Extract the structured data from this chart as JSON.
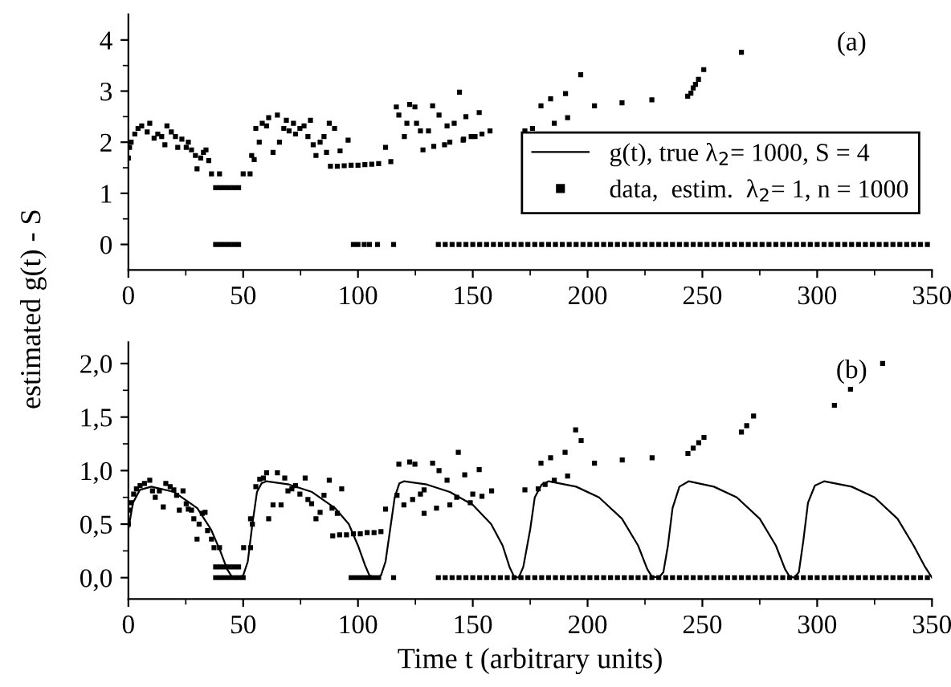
{
  "chart_data": [
    {
      "type": "scatter",
      "ylabel": "estimated g(t) - S",
      "annotations": [
        "(a)"
      ],
      "legend": "center right",
      "marker": "square",
      "grid": false,
      "xlim": [
        0,
        350
      ],
      "xticks": [
        0,
        {
          "value": 25,
          "label": null
        },
        50,
        {
          "value": 75,
          "label": null
        },
        100,
        {
          "value": 125,
          "label": null
        },
        150,
        {
          "value": 175,
          "label": null
        },
        200,
        {
          "value": 225,
          "label": null
        },
        250,
        {
          "value": 275,
          "label": null
        },
        300,
        {
          "value": 325,
          "label": null
        },
        350
      ],
      "ylim": [
        -0.5,
        4.5
      ],
      "yticks": [
        0,
        {
          "value": 0.5,
          "label": null
        },
        1,
        {
          "value": 1.5,
          "label": null
        },
        2,
        {
          "value": 2.5,
          "label": null
        },
        3,
        {
          "value": 3.5,
          "label": null
        },
        4
      ],
      "series": [
        {
          "name": "g(t), true λ$_{2}$= 1000, S = 4",
          "type": "line",
          "marker": "none",
          "color": "#000000"
        },
        {
          "name": "data,  estim.  λ$_{2}$= 1, n = 1000",
          "color": "#000000",
          "x": [
            0,
            0.5,
            1.2,
            2.8,
            4.2,
            5.8,
            8.2,
            9.3,
            11.2,
            12.8,
            14.5,
            15.9,
            16.8,
            18.7,
            20.5,
            21.5,
            23.3,
            25.2,
            26.1,
            27.5,
            29.2,
            29.9,
            31.5,
            32.7,
            33.8,
            35,
            36.2,
            38,
            39.7,
            40,
            42,
            44,
            46,
            48,
            50,
            53,
            53.7,
            54.8,
            55.5,
            57,
            58.3,
            60.2,
            61.1,
            63,
            64.9,
            65.8,
            67.7,
            68.8,
            70,
            71.9,
            72.8,
            74.7,
            76.5,
            78.2,
            79.3,
            80.5,
            81.7,
            83.5,
            85.2,
            86.3,
            87.5,
            88,
            89.8,
            91,
            92.2,
            94,
            95.7,
            97,
            100,
            103,
            106,
            109,
            112,
            114.3,
            116.7,
            117.8,
            120.2,
            121.3,
            122.5,
            124.8,
            125.5,
            127.2,
            128.3,
            130.7,
            132.5,
            133,
            135.3,
            137.7,
            138.8,
            140,
            141.9,
            144.2,
            145.8,
            146,
            147,
            149.3,
            151,
            152.8,
            154,
            157.5,
            172.7,
            176,
            179.7,
            183.9,
            185.5,
            190.4,
            191.3,
            197,
            203,
            215,
            228,
            243.6,
            245,
            246,
            247,
            248.3,
            250.6,
            267
          ],
          "values": [
            1.69,
            1.9,
            2.0,
            2.16,
            2.27,
            2.32,
            2.2,
            2.37,
            2.08,
            2.16,
            2.11,
            1.95,
            2.32,
            2.2,
            2.11,
            1.9,
            2.06,
            1.9,
            2.0,
            1.85,
            1.74,
            1.48,
            1.69,
            1.8,
            1.85,
            1.64,
            1.38,
            1.11,
            1.38,
            1.11,
            1.11,
            1.11,
            1.11,
            1.11,
            1.38,
            1.38,
            1.74,
            1.66,
            2.27,
            2.0,
            2.37,
            2.32,
            2.48,
            1.8,
            2.53,
            2.0,
            2.27,
            2.43,
            2.22,
            2.37,
            2.16,
            2.27,
            2.32,
            2.11,
            2.43,
            1.95,
            1.74,
            2.0,
            2.11,
            1.8,
            2.37,
            1.53,
            2.27,
            1.53,
            1.83,
            1.54,
            2.04,
            1.55,
            1.55,
            1.56,
            1.57,
            1.58,
            1.9,
            1.62,
            2.69,
            2.53,
            2.11,
            2.37,
            2.74,
            2.69,
            2.37,
            2.22,
            1.85,
            2.22,
            2.71,
            1.92,
            2.53,
            1.95,
            2.32,
            2.0,
            2.37,
            2.98,
            2.04,
            2.06,
            2.5,
            2.11,
            2.11,
            2.58,
            2.16,
            2.22,
            2.22,
            2.27,
            2.71,
            2.85,
            2.37,
            2.95,
            2.48,
            3.32,
            2.71,
            2.77,
            2.83,
            2.9,
            2.96,
            3.06,
            3.13,
            3.23,
            3.42,
            3.76
          ]
        },
        {
          "color": "#000000",
          "x": [
            38,
            40,
            42,
            44,
            46,
            48,
            98,
            100,
            102.7,
            105,
            108.5,
            115.5,
            135,
            138,
            141,
            144,
            147,
            150,
            153,
            156,
            159,
            162,
            165,
            168,
            171,
            174,
            177,
            180,
            183,
            186,
            189,
            192,
            195,
            198,
            201,
            204,
            207,
            210,
            213,
            216,
            219,
            222,
            225,
            228,
            231,
            234,
            237,
            240,
            243,
            246,
            249,
            252,
            255,
            258,
            261,
            264,
            267,
            270,
            273,
            276,
            279,
            282,
            285,
            288,
            291,
            294,
            297,
            300,
            303,
            306,
            309,
            312,
            315,
            318,
            321,
            324,
            327,
            330,
            333,
            336,
            339,
            342,
            345,
            348
          ],
          "values": [
            0,
            0,
            0,
            0,
            0,
            0,
            0,
            0,
            0,
            0,
            0,
            0,
            0,
            0,
            0,
            0,
            0,
            0,
            0,
            0,
            0,
            0,
            0,
            0,
            0,
            0,
            0,
            0,
            0,
            0,
            0,
            0,
            0,
            0,
            0,
            0,
            0,
            0,
            0,
            0,
            0,
            0,
            0,
            0,
            0,
            0,
            0,
            0,
            0,
            0,
            0,
            0,
            0,
            0,
            0,
            0,
            0,
            0,
            0,
            0,
            0,
            0,
            0,
            0,
            0,
            0,
            0,
            0,
            0,
            0,
            0,
            0,
            0,
            0,
            0,
            0,
            0,
            0,
            0,
            0,
            0,
            0,
            0,
            0
          ]
        }
      ]
    },
    {
      "type": "scatter",
      "xlabel": "Time t (arbitrary units)",
      "annotations": [
        "(b)"
      ],
      "marker": "square",
      "grid": false,
      "xlim": [
        0,
        350
      ],
      "xticks": [
        0,
        {
          "value": 25,
          "label": null
        },
        50,
        {
          "value": 75,
          "label": null
        },
        100,
        {
          "value": 125,
          "label": null
        },
        150,
        {
          "value": 175,
          "label": null
        },
        200,
        {
          "value": 225,
          "label": null
        },
        250,
        {
          "value": 275,
          "label": null
        },
        300,
        {
          "value": 325,
          "label": null
        },
        350
      ],
      "ylim": [
        -0.2,
        2.2
      ],
      "yticks": [
        {
          "value": 0,
          "label": "0,0"
        },
        {
          "value": 0.25,
          "label": null
        },
        {
          "value": 0.5,
          "label": "0,5"
        },
        {
          "value": 0.75,
          "label": null
        },
        {
          "value": 1,
          "label": "1,0"
        },
        {
          "value": 1.25,
          "label": null
        },
        {
          "value": 1.5,
          "label": "1,5"
        },
        {
          "value": 1.75,
          "label": null
        },
        {
          "value": 2,
          "label": "2,0"
        }
      ],
      "series": [
        {
          "type": "line",
          "marker": "none",
          "color": "#000000",
          "x": [
            0,
            2,
            5,
            10,
            20,
            30,
            36,
            40,
            43,
            45,
            48,
            50,
            52,
            54,
            56,
            58,
            60,
            70,
            80,
            90,
            96,
            100,
            103,
            105,
            108,
            110,
            112,
            114,
            116,
            118,
            120,
            130,
            140,
            150,
            158,
            163,
            166,
            168,
            170,
            172,
            175,
            177,
            180,
            183,
            195,
            205,
            215,
            222,
            226,
            228,
            231,
            233,
            235,
            237,
            240,
            244,
            255,
            265,
            275,
            282,
            286,
            288,
            290,
            292,
            294,
            296,
            299,
            303,
            315,
            325,
            335,
            342,
            347,
            350
          ],
          "values": [
            0.45,
            0.7,
            0.82,
            0.85,
            0.8,
            0.65,
            0.45,
            0.25,
            0.08,
            0.01,
            0,
            0.02,
            0.15,
            0.5,
            0.8,
            0.88,
            0.9,
            0.87,
            0.8,
            0.65,
            0.5,
            0.3,
            0.12,
            0.02,
            0,
            0.02,
            0.15,
            0.45,
            0.75,
            0.88,
            0.9,
            0.87,
            0.8,
            0.68,
            0.5,
            0.3,
            0.1,
            0.01,
            0,
            0.1,
            0.45,
            0.75,
            0.87,
            0.9,
            0.85,
            0.75,
            0.55,
            0.3,
            0.08,
            0.01,
            0,
            0.05,
            0.3,
            0.65,
            0.85,
            0.9,
            0.85,
            0.75,
            0.55,
            0.3,
            0.08,
            0.01,
            0,
            0.05,
            0.35,
            0.7,
            0.86,
            0.9,
            0.85,
            0.75,
            0.55,
            0.3,
            0.1,
            0
          ]
        },
        {
          "color": "#000000",
          "x": [
            0,
            0.3,
            1.2,
            2.3,
            3.5,
            5.1,
            7,
            9.3,
            10.5,
            11.7,
            13.5,
            15.2,
            16.3,
            18.2,
            19.8,
            21,
            22.2,
            23.8,
            25.2,
            26.1,
            27.5,
            28.5,
            29.9,
            30.8,
            32.2,
            33.4,
            34.5,
            36.2,
            37.3,
            38,
            39.7,
            40,
            42,
            44,
            46,
            48,
            50.2,
            53.2,
            53.2,
            54,
            55.5,
            57.2,
            58.8,
            60.2,
            61.1,
            63,
            64.9,
            66.5,
            68.1,
            69.5,
            71.2,
            72.8,
            74.7,
            77,
            78.2,
            79.8,
            81.7,
            83.5,
            85.2,
            87.5,
            88.7,
            89,
            91,
            92,
            92.9,
            95,
            98,
            101,
            104,
            107,
            110,
            112,
            117,
            117.8,
            120,
            122.5,
            123.8,
            124.8,
            127.2,
            128.8,
            128.8,
            132.5,
            134.2,
            135.3,
            138.8,
            140,
            143,
            143.7,
            146.5,
            148.9,
            150,
            152.8,
            154,
            158.2,
            172.7,
            178.5,
            179.7,
            181.5,
            183.9,
            185.5,
            190.2,
            191.3,
            194.8,
            197.2,
            203,
            215.1,
            228.1,
            243.7,
            246,
            248.4,
            250.7,
            267,
            269.3,
            272.3,
            307.5,
            314.5,
            328.5
          ],
          "values": [
            0.5,
            0.63,
            0.7,
            0.78,
            0.83,
            0.86,
            0.88,
            0.91,
            0.81,
            0.75,
            0.81,
            0.66,
            0.88,
            0.85,
            0.82,
            0.77,
            0.63,
            0.81,
            0.69,
            0.64,
            0.63,
            0.55,
            0.36,
            0.5,
            0.6,
            0.61,
            0.44,
            0.36,
            0.28,
            0.1,
            0.28,
            0.1,
            0.1,
            0.1,
            0.1,
            0.1,
            0.28,
            0.28,
            0.55,
            0.5,
            0.85,
            0.92,
            0.93,
            0.98,
            0.55,
            0.68,
            0.98,
            0.68,
            0.93,
            0.81,
            0.83,
            0.86,
            0.78,
            0.93,
            0.73,
            0.69,
            0.55,
            0.61,
            0.77,
            0.91,
            0.65,
            0.39,
            0.6,
            0.4,
            0.83,
            0.4,
            0.41,
            0.41,
            0.42,
            0.42,
            0.43,
            0.64,
            0.77,
            1.06,
            0.68,
            1.08,
            0.73,
            1.06,
            0.78,
            0.82,
            0.6,
            1.07,
            0.65,
            1.0,
            0.91,
            0.68,
            0.75,
            1.17,
            0.96,
            0.7,
            0.78,
            1.01,
            0.76,
            0.81,
            0.82,
            0.83,
            1.07,
            0.87,
            1.12,
            0.91,
            1.17,
            0.95,
            1.38,
            1.28,
            1.07,
            1.1,
            1.12,
            1.16,
            1.21,
            1.26,
            1.31,
            1.36,
            1.42,
            1.51,
            1.61,
            1.76,
            2.0
          ]
        },
        {
          "color": "#000000",
          "x": [
            38,
            40,
            42,
            44,
            46,
            48,
            50,
            97,
            99,
            101,
            103,
            105,
            107,
            109,
            115.5,
            135,
            138,
            141,
            144,
            147,
            150,
            153,
            156,
            159,
            162,
            165,
            168,
            171,
            174,
            177,
            180,
            183,
            186,
            189,
            192,
            195,
            198,
            201,
            204,
            207,
            210,
            213,
            216,
            219,
            222,
            225,
            228,
            231,
            234,
            237,
            240,
            243,
            246,
            249,
            252,
            255,
            258,
            261,
            264,
            267,
            270,
            273,
            276,
            279,
            282,
            285,
            288,
            291,
            294,
            297,
            300,
            303,
            306,
            309,
            312,
            315,
            318,
            321,
            324,
            327,
            330,
            333,
            336,
            339,
            342,
            345,
            348
          ],
          "values": [
            0,
            0,
            0,
            0,
            0,
            0,
            0,
            0,
            0,
            0,
            0,
            0,
            0,
            0,
            0,
            0,
            0,
            0,
            0,
            0,
            0,
            0,
            0,
            0,
            0,
            0,
            0,
            0,
            0,
            0,
            0,
            0,
            0,
            0,
            0,
            0,
            0,
            0,
            0,
            0,
            0,
            0,
            0,
            0,
            0,
            0,
            0,
            0,
            0,
            0,
            0,
            0,
            0,
            0,
            0,
            0,
            0,
            0,
            0,
            0,
            0,
            0,
            0,
            0,
            0,
            0,
            0,
            0,
            0,
            0,
            0,
            0,
            0,
            0,
            0,
            0,
            0,
            0,
            0,
            0,
            0,
            0,
            0,
            0,
            0,
            0,
            0
          ]
        }
      ]
    }
  ]
}
